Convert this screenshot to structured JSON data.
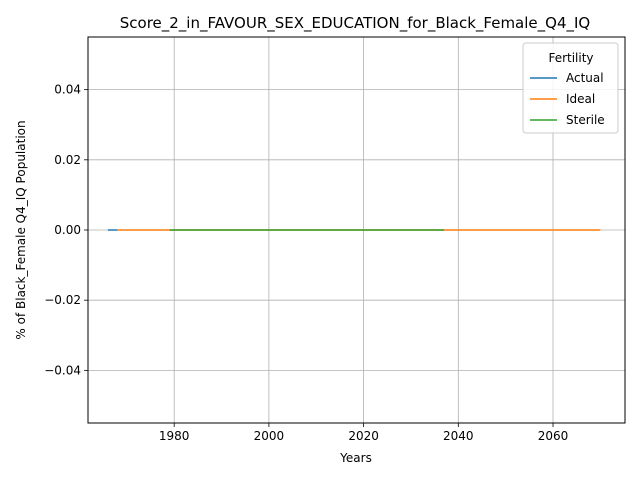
{
  "chart_data": {
    "type": "line",
    "title": "Score_2_in_FAVOUR_SEX_EDUCATION_for_Black_Female_Q4_IQ",
    "xlabel": "Years",
    "ylabel": "% of Black_Female Q4_IQ Population",
    "xlim": [
      1961.8,
      2075.2
    ],
    "ylim": [
      -0.055,
      0.055
    ],
    "x_ticks": [
      1980,
      2000,
      2020,
      2040,
      2060
    ],
    "y_ticks": [
      -0.04,
      -0.02,
      0.0,
      0.02,
      0.04
    ],
    "y_tick_labels": [
      "−0.04",
      "−0.02",
      "0.00",
      "0.02",
      "0.04"
    ],
    "grid": true,
    "legend": {
      "title": "Fertility",
      "placement": "top-right"
    },
    "series": [
      {
        "name": "Actual",
        "color": "#1f77b4",
        "x": [
          1966,
          1968
        ],
        "y": [
          0,
          0
        ]
      },
      {
        "name": "Ideal",
        "color": "#ff7f0e",
        "x": [
          1968,
          2070
        ],
        "y": [
          0,
          0
        ]
      },
      {
        "name": "Sterile",
        "color": "#2ca02c",
        "x": [
          1979,
          2037
        ],
        "y": [
          0,
          0
        ]
      }
    ]
  }
}
